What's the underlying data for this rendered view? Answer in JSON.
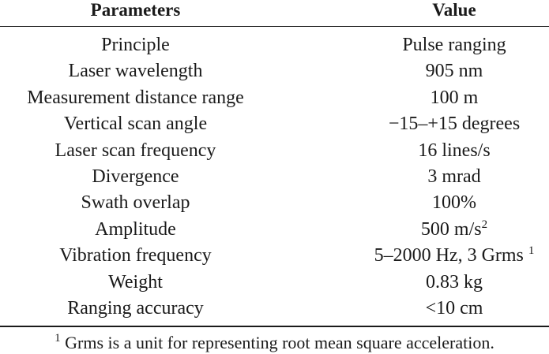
{
  "table": {
    "headers": {
      "parameters": "Parameters",
      "value": "Value"
    },
    "rows": [
      {
        "parameter": "Principle",
        "value": "Pulse ranging",
        "sup": ""
      },
      {
        "parameter": "Laser wavelength",
        "value": "905 nm",
        "sup": ""
      },
      {
        "parameter": "Measurement distance range",
        "value": "100 m",
        "sup": ""
      },
      {
        "parameter": "Vertical scan angle",
        "value": "−15–+15 degrees",
        "sup": ""
      },
      {
        "parameter": "Laser scan frequency",
        "value": "16 lines/s",
        "sup": ""
      },
      {
        "parameter": "Divergence",
        "value": "3 mrad",
        "sup": ""
      },
      {
        "parameter": "Swath overlap",
        "value": "100%",
        "sup": ""
      },
      {
        "parameter": "Amplitude",
        "value": "500 m/s",
        "sup": "2"
      },
      {
        "parameter": "Vibration frequency",
        "value": "5–2000 Hz, 3 Grms ",
        "sup": "1"
      },
      {
        "parameter": "Weight",
        "value": "0.83 kg",
        "sup": ""
      },
      {
        "parameter": "Ranging accuracy",
        "value": "<10 cm",
        "sup": ""
      }
    ]
  },
  "footnote": {
    "marker": "1",
    "text": " Grms is a unit for representing root mean square acceleration."
  }
}
